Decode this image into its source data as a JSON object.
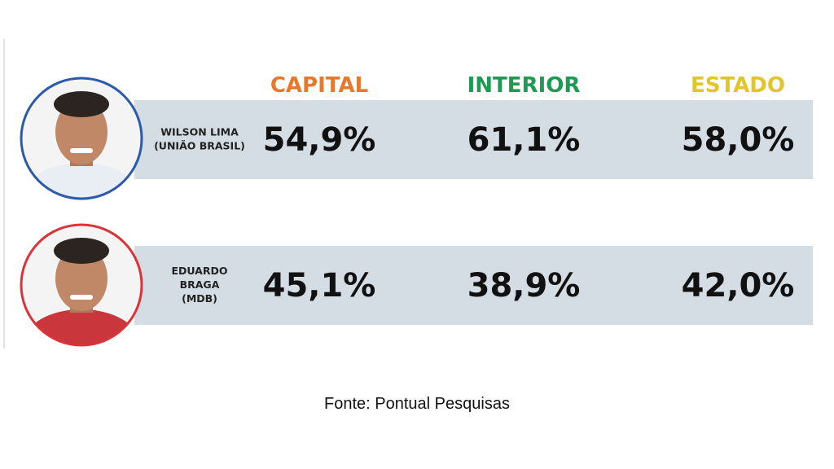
{
  "table": {
    "columns": [
      {
        "label": "CAPITAL",
        "color": "#e8782c"
      },
      {
        "label": "INTERIOR",
        "color": "#1f9a52"
      },
      {
        "label": "ESTADO",
        "color": "#e2c52a"
      }
    ],
    "rows": [
      {
        "name": [
          "WILSON LIMA",
          "(UNIÃO BRASIL)"
        ],
        "border": "#2d5aa8",
        "shirt": "#e9eef5",
        "values": [
          "54,9%",
          "61,1%",
          "58,0%"
        ]
      },
      {
        "name": [
          "EDUARDO",
          "BRAGA",
          "(MDB)"
        ],
        "border": "#d8343a",
        "shirt": "#c9363c",
        "values": [
          "45,1%",
          "38,9%",
          "42,0%"
        ]
      }
    ]
  },
  "footer": {
    "source": "Fonte: Pontual Pesquisas"
  }
}
